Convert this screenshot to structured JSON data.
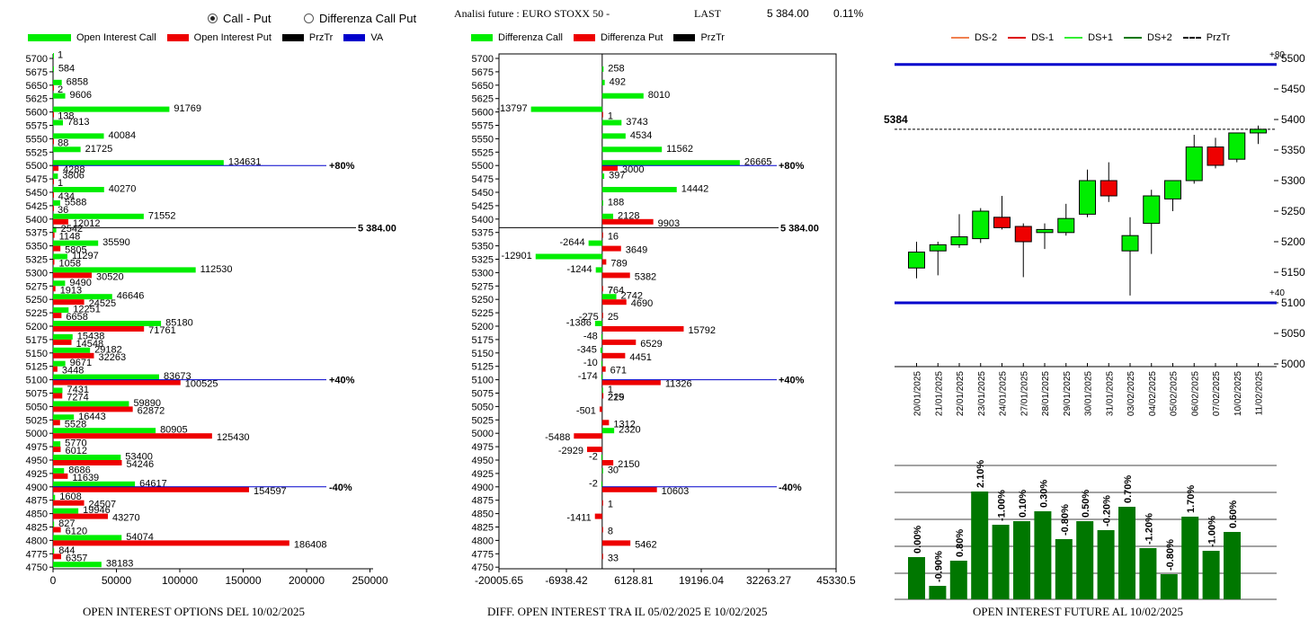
{
  "header": {
    "radio_call_put": "Call - Put",
    "radio_diff": "Differenza Call Put",
    "title": "Analisi future : EURO STOXX 50 -",
    "last_label": "LAST",
    "last_value": "5 384.00",
    "change": "0.11%"
  },
  "legend1": {
    "oi_call": "Open Interest Call",
    "oi_put": "Open Interest Put",
    "przTr": "PrzTr",
    "va": "VA"
  },
  "legend2": {
    "diff_call": "Differenza Call",
    "diff_put": "Differenza Put",
    "przTr": "PrzTr"
  },
  "legend3": {
    "ds_m2": "DS-2",
    "ds_m1": "DS-1",
    "ds_p1": "DS+1",
    "ds_p2": "DS+2",
    "przTr": "PrzTr"
  },
  "footers": {
    "f1": "OPEN INTEREST OPTIONS DEL 10/02/2025",
    "f2": "DIFF. OPEN INTEREST TRA IL 05/02/2025 E 10/02/2025",
    "f3": "OPEN INTEREST FUTURE AL 10/02/2025"
  },
  "colors": {
    "call": "#00ee00",
    "put": "#ee0000",
    "va": "#0000cc",
    "dark_green": "#007700"
  },
  "chart_data": [
    {
      "type": "bar",
      "orientation": "horizontal",
      "strikes": [
        5700,
        5675,
        5650,
        5625,
        5600,
        5575,
        5550,
        5525,
        5500,
        5475,
        5450,
        5425,
        5400,
        5375,
        5350,
        5325,
        5300,
        5275,
        5250,
        5225,
        5200,
        5175,
        5150,
        5125,
        5100,
        5075,
        5050,
        5025,
        5000,
        4975,
        4950,
        4925,
        4900,
        4875,
        4850,
        4825,
        4800,
        4775,
        4750
      ],
      "series": [
        {
          "name": "Open Interest Call",
          "values": [
            1,
            584,
            6858,
            9606,
            91769,
            7813,
            40084,
            21725,
            134631,
            3806,
            40270,
            5588,
            71552,
            2542,
            35590,
            11297,
            112530,
            9490,
            46646,
            12251,
            85180,
            15438,
            29182,
            9671,
            83673,
            7431,
            59890,
            16443,
            80905,
            5770,
            53400,
            8686,
            64617,
            1608,
            19946,
            827,
            54074,
            844,
            38183
          ]
        },
        {
          "name": "Open Interest Put",
          "values": [
            null,
            null,
            2,
            null,
            138,
            null,
            88,
            null,
            4288,
            1,
            434,
            36,
            12012,
            1148,
            5805,
            1058,
            30520,
            1913,
            24525,
            6658,
            71761,
            14548,
            32263,
            3448,
            100525,
            7274,
            62872,
            5528,
            125430,
            6012,
            54246,
            11639,
            154597,
            24507,
            43270,
            6120,
            186408,
            6357,
            null
          ]
        }
      ],
      "markers": [
        {
          "strike": 5500,
          "label": "+80%"
        },
        {
          "strike": 5100,
          "label": "+40%"
        },
        {
          "strike": 4900,
          "label": "-40%"
        }
      ],
      "przTr": {
        "value": 5384,
        "label": "5 384.00"
      },
      "x_ticks": [
        "0",
        "50000",
        "100000",
        "150000",
        "200000",
        "250000"
      ],
      "xlim": [
        0,
        250000
      ]
    },
    {
      "type": "bar",
      "orientation": "horizontal",
      "strikes": [
        5700,
        5675,
        5650,
        5625,
        5600,
        5575,
        5550,
        5525,
        5500,
        5475,
        5450,
        5425,
        5400,
        5375,
        5350,
        5325,
        5300,
        5275,
        5250,
        5225,
        5200,
        5175,
        5150,
        5125,
        5100,
        5075,
        5050,
        5025,
        5000,
        4975,
        4950,
        4925,
        4900,
        4875,
        4850,
        4825,
        4800,
        4775,
        4750
      ],
      "series": [
        {
          "name": "Differenza Call",
          "values": [
            null,
            258,
            492,
            8010,
            -13797,
            3743,
            4534,
            11562,
            26665,
            397,
            14442,
            188,
            2128,
            null,
            -2644,
            -12901,
            -1244,
            null,
            2742,
            null,
            -1386,
            -48,
            -345,
            -10,
            -174,
            1,
            null,
            null,
            2320,
            null,
            -2,
            30,
            -2,
            null,
            null,
            null,
            null,
            null,
            null
          ]
        },
        {
          "name": "Differenza Put",
          "values": [
            null,
            null,
            null,
            null,
            1,
            null,
            null,
            null,
            3000,
            null,
            null,
            null,
            9903,
            16,
            3649,
            789,
            5382,
            7,
            4690,
            25,
            15792,
            6529,
            4451,
            671,
            11326,
            229,
            -501,
            1312,
            -5488,
            -2929,
            2150,
            null,
            10603,
            1,
            -1411,
            8,
            5462,
            33,
            null
          ]
        }
      ],
      "extra_labels": [
        {
          "strike": 5275,
          "label": "764"
        },
        {
          "strike": 5225,
          "label": "-275"
        },
        {
          "strike": 5075,
          "label": "215"
        }
      ],
      "markers": [
        {
          "strike": 5500,
          "label": "+80%"
        },
        {
          "strike": 5100,
          "label": "+40%"
        },
        {
          "strike": 4900,
          "label": "-40%"
        }
      ],
      "przTr": {
        "value": 5384,
        "label": "5 384.00"
      },
      "x_ticks": [
        "-20005.65",
        "-6938.42",
        "6128.81",
        "19196.04",
        "32263.27",
        "45330.5"
      ],
      "xlim": [
        -20005.65,
        45330.5
      ]
    },
    {
      "type": "candlestick",
      "dates": [
        "20/01/2025",
        "21/01/2025",
        "22/01/2025",
        "23/01/2025",
        "24/01/2025",
        "27/01/2025",
        "28/01/2025",
        "29/01/2025",
        "30/01/2025",
        "31/01/2025",
        "03/02/2025",
        "04/02/2025",
        "05/02/2025",
        "06/02/2025",
        "07/02/2025",
        "10/02/2025",
        "11/02/2025"
      ],
      "ohlc": [
        [
          5157,
          5200,
          5140,
          5183
        ],
        [
          5185,
          5200,
          5145,
          5195
        ],
        [
          5195,
          5245,
          5190,
          5208
        ],
        [
          5205,
          5255,
          5198,
          5250
        ],
        [
          5240,
          5275,
          5220,
          5223
        ],
        [
          5225,
          5230,
          5142,
          5200
        ],
        [
          5215,
          5230,
          5188,
          5220
        ],
        [
          5215,
          5262,
          5210,
          5238
        ],
        [
          5245,
          5318,
          5240,
          5300
        ],
        [
          5300,
          5330,
          5265,
          5275
        ],
        [
          5185,
          5240,
          5112,
          5210
        ],
        [
          5230,
          5285,
          5180,
          5275
        ],
        [
          5270,
          5300,
          5250,
          5300
        ],
        [
          5300,
          5375,
          5295,
          5355
        ],
        [
          5355,
          5370,
          5320,
          5325
        ],
        [
          5335,
          5378,
          5330,
          5378
        ],
        [
          5378,
          5390,
          5360,
          5384
        ]
      ],
      "y_ticks": [
        "5500",
        "5450",
        "5400",
        "5350",
        "5300",
        "5250",
        "5200",
        "5150",
        "5100",
        "5050",
        "5000"
      ],
      "ylim": [
        5000,
        5500
      ],
      "levels": [
        {
          "value": 5490,
          "label": "+80"
        },
        {
          "value": 5100,
          "label": "+40"
        }
      ],
      "przTr": {
        "value": 5384,
        "label": "5384"
      }
    },
    {
      "type": "bar",
      "categories": [
        "20/01/2025",
        "21/01/2025",
        "22/01/2025",
        "23/01/2025",
        "24/01/2025",
        "27/01/2025",
        "28/01/2025",
        "29/01/2025",
        "30/01/2025",
        "31/01/2025",
        "03/02/2025",
        "04/02/2025",
        "05/02/2025",
        "06/02/2025",
        "07/02/2025",
        "10/02/2025"
      ],
      "values": [
        47,
        15,
        43,
        120,
        83,
        87,
        98,
        67,
        87,
        77,
        103,
        57,
        28,
        92,
        54,
        75
      ],
      "labels": [
        "0.00%",
        "-0.90%",
        "0.80%",
        "2.10%",
        "-1.00%",
        "0.10%",
        "0.30%",
        "-0.80%",
        "0.50%",
        "-0.20%",
        "0.70%",
        "-1.20%",
        "-0.80%",
        "1.70%",
        "-1.00%",
        "0.60%"
      ]
    }
  ]
}
